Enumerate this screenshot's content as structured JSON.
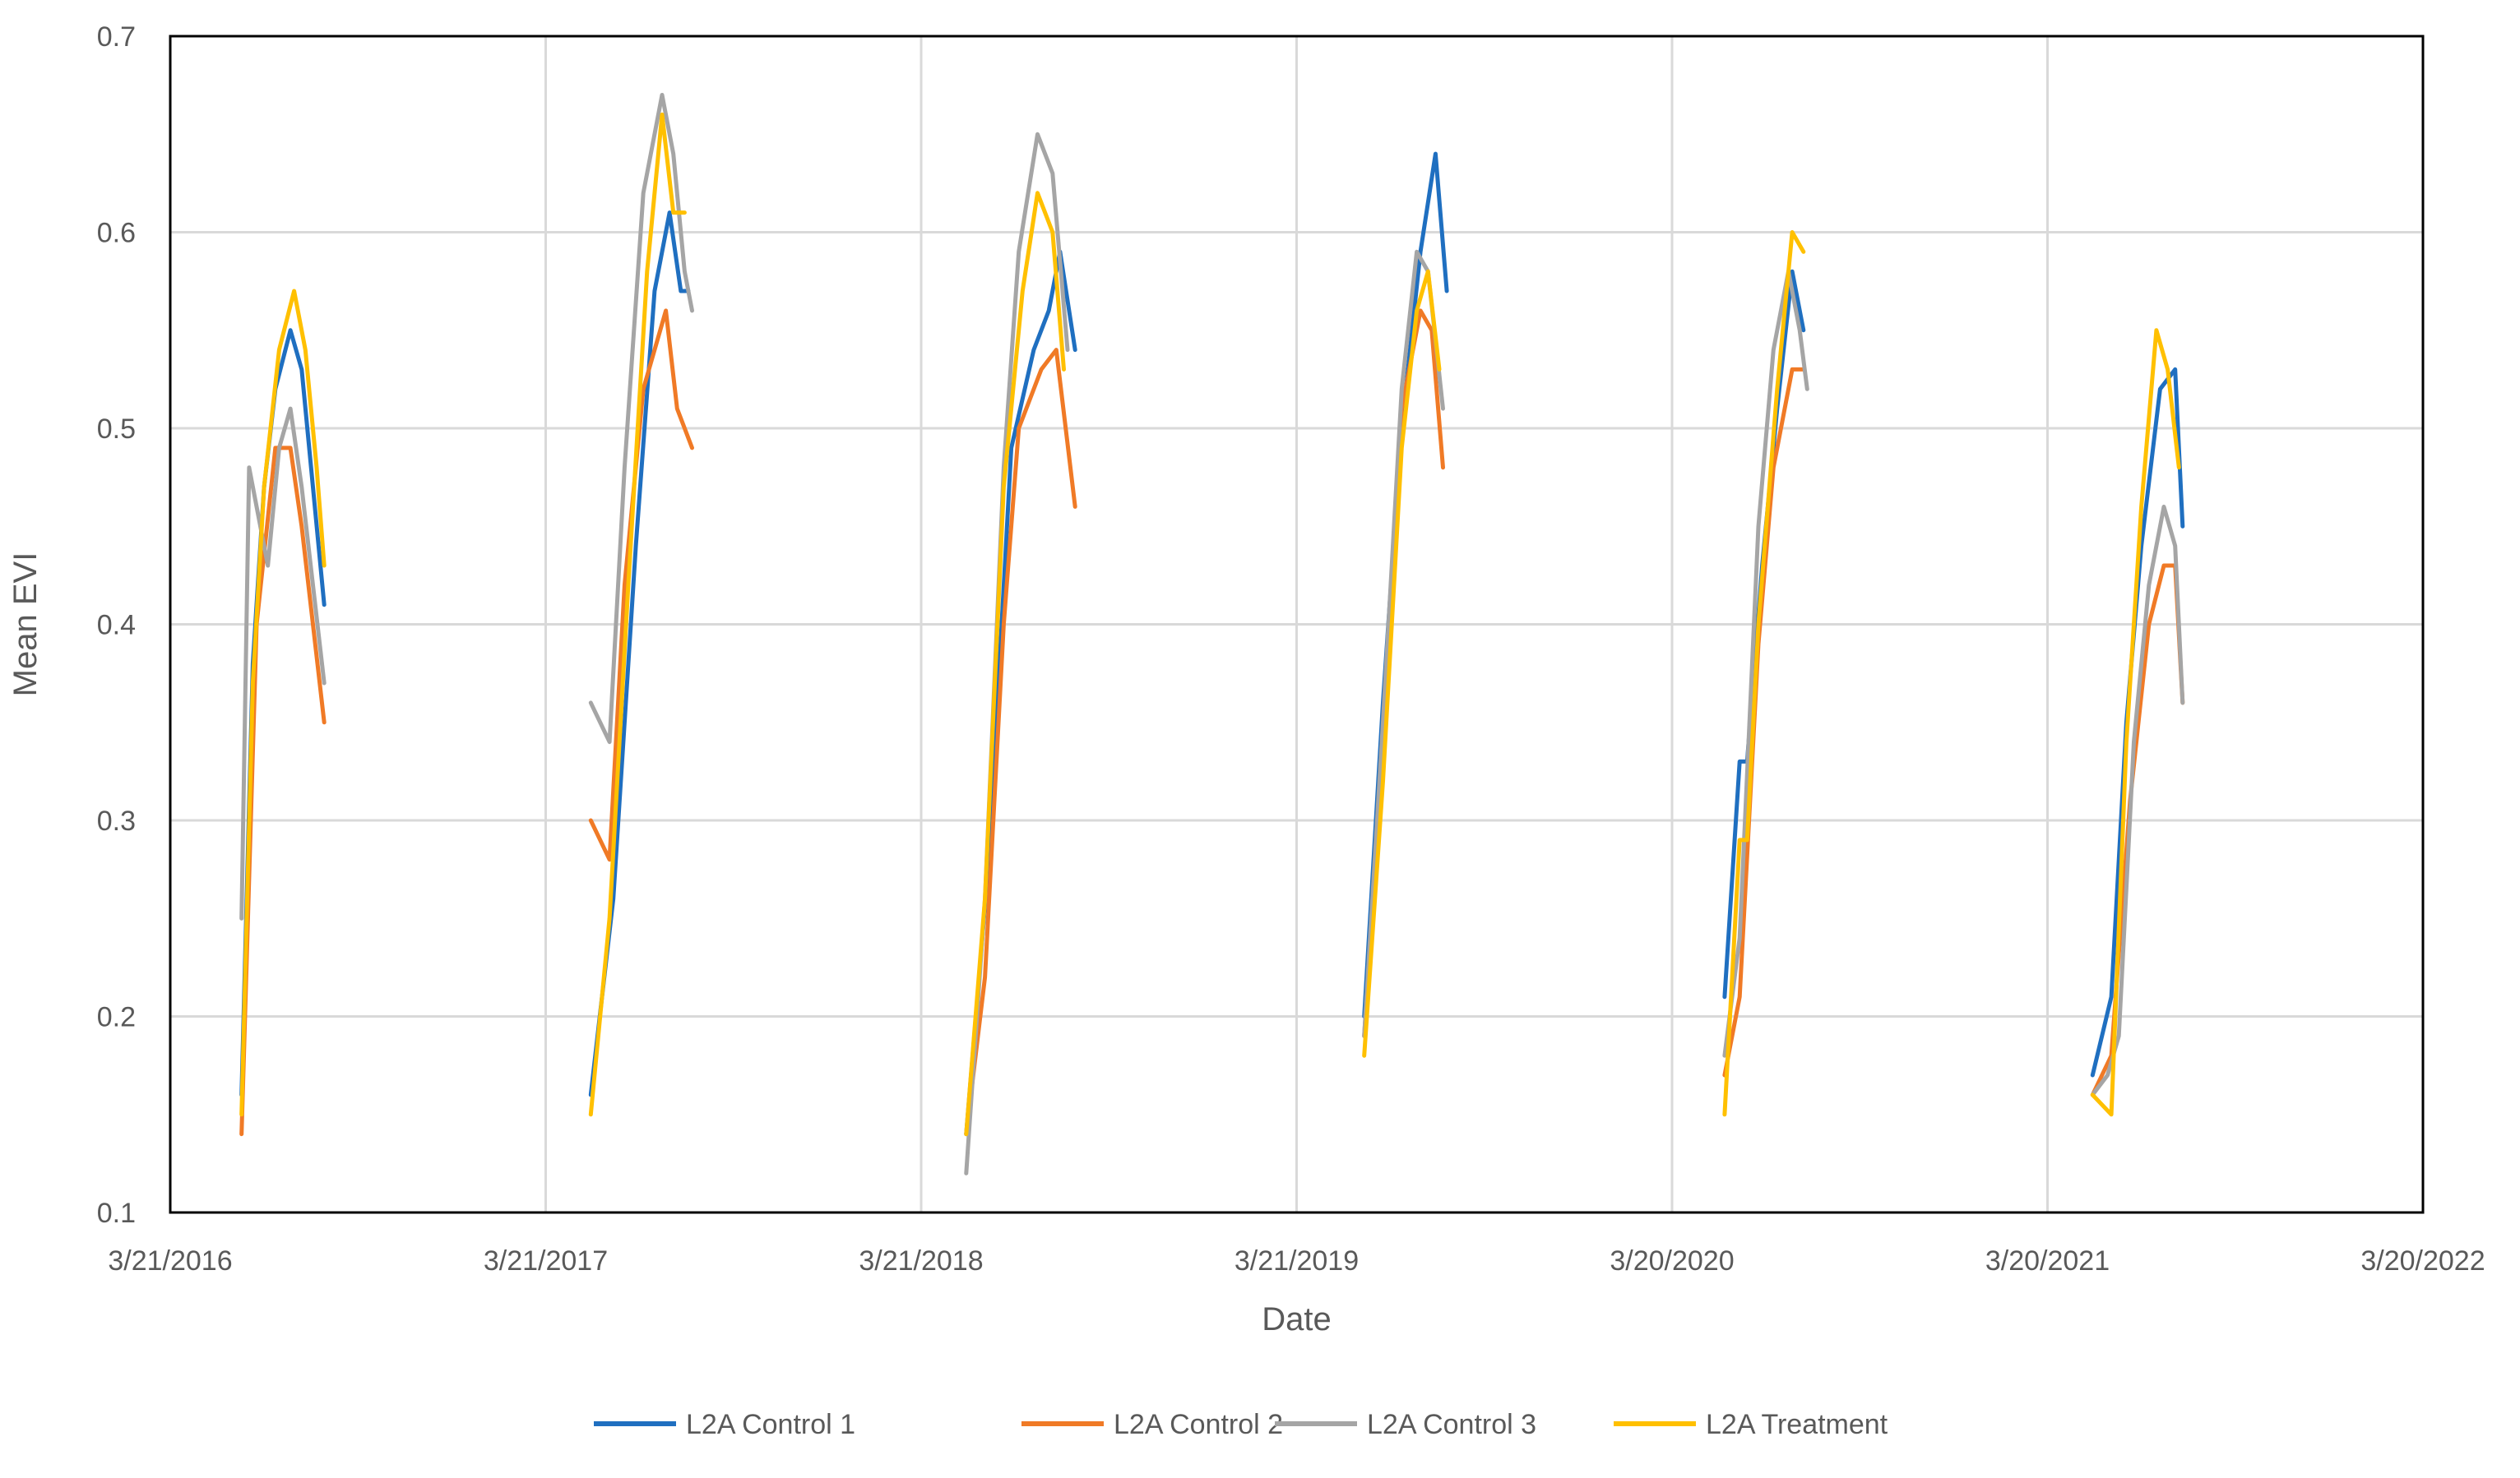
{
  "chart_data": {
    "type": "line",
    "title": "",
    "xlabel": "Date",
    "ylabel": "Mean EVI",
    "ylim": [
      0.1,
      0.7
    ],
    "yticks": [
      "0.1",
      "0.2",
      "0.3",
      "0.4",
      "0.5",
      "0.6",
      "0.7"
    ],
    "xlim": [
      0,
      6
    ],
    "xticks": [
      "3/21/2016",
      "3/21/2017",
      "3/21/2018",
      "3/21/2019",
      "3/20/2020",
      "3/20/2021",
      "3/20/2022"
    ],
    "grid": true,
    "legend_position": "bottom",
    "x_unit": "years since 3/21/2016",
    "series": [
      {
        "name": "L2A Control 1",
        "color": "#1f6fc0",
        "segments": [
          [
            [
              0.19,
              0.16
            ],
            [
              0.22,
              0.38
            ],
            [
              0.25,
              0.47
            ],
            [
              0.28,
              0.52
            ],
            [
              0.32,
              0.55
            ],
            [
              0.35,
              0.53
            ],
            [
              0.38,
              0.47
            ],
            [
              0.41,
              0.41
            ]
          ],
          [
            [
              1.12,
              0.16
            ],
            [
              1.18,
              0.26
            ],
            [
              1.24,
              0.44
            ],
            [
              1.29,
              0.57
            ],
            [
              1.33,
              0.61
            ],
            [
              1.36,
              0.57
            ],
            [
              1.38,
              0.57
            ]
          ],
          [
            [
              2.12,
              0.14
            ],
            [
              2.18,
              0.28
            ],
            [
              2.24,
              0.49
            ],
            [
              2.3,
              0.54
            ],
            [
              2.34,
              0.56
            ],
            [
              2.37,
              0.59
            ],
            [
              2.41,
              0.54
            ]
          ],
          [
            [
              3.18,
              0.2
            ],
            [
              3.23,
              0.36
            ],
            [
              3.28,
              0.5
            ],
            [
              3.33,
              0.59
            ],
            [
              3.37,
              0.64
            ],
            [
              3.4,
              0.57
            ]
          ],
          [
            [
              4.14,
              0.21
            ],
            [
              4.18,
              0.33
            ],
            [
              4.2,
              0.33
            ],
            [
              4.24,
              0.43
            ],
            [
              4.28,
              0.51
            ],
            [
              4.32,
              0.58
            ],
            [
              4.35,
              0.55
            ]
          ],
          [
            [
              5.12,
              0.17
            ],
            [
              5.17,
              0.21
            ],
            [
              5.21,
              0.35
            ],
            [
              5.25,
              0.44
            ],
            [
              5.3,
              0.52
            ],
            [
              5.34,
              0.53
            ],
            [
              5.36,
              0.45
            ]
          ]
        ]
      },
      {
        "name": "L2A Control 2",
        "color": "#f07a26",
        "segments": [
          [
            [
              0.19,
              0.14
            ],
            [
              0.23,
              0.4
            ],
            [
              0.28,
              0.49
            ],
            [
              0.32,
              0.49
            ],
            [
              0.35,
              0.45
            ],
            [
              0.38,
              0.4
            ],
            [
              0.41,
              0.35
            ]
          ],
          [
            [
              1.12,
              0.3
            ],
            [
              1.17,
              0.28
            ],
            [
              1.21,
              0.42
            ],
            [
              1.26,
              0.52
            ],
            [
              1.32,
              0.56
            ],
            [
              1.35,
              0.51
            ],
            [
              1.39,
              0.49
            ]
          ],
          [
            [
              2.12,
              0.14
            ],
            [
              2.17,
              0.22
            ],
            [
              2.22,
              0.4
            ],
            [
              2.26,
              0.5
            ],
            [
              2.32,
              0.53
            ],
            [
              2.36,
              0.54
            ],
            [
              2.41,
              0.46
            ]
          ],
          [
            [
              3.18,
              0.19
            ],
            [
              3.23,
              0.34
            ],
            [
              3.28,
              0.51
            ],
            [
              3.33,
              0.56
            ],
            [
              3.36,
              0.55
            ],
            [
              3.39,
              0.48
            ]
          ],
          [
            [
              4.14,
              0.17
            ],
            [
              4.18,
              0.21
            ],
            [
              4.23,
              0.39
            ],
            [
              4.27,
              0.48
            ],
            [
              4.32,
              0.53
            ],
            [
              4.35,
              0.53
            ]
          ],
          [
            [
              5.12,
              0.16
            ],
            [
              5.17,
              0.18
            ],
            [
              5.22,
              0.31
            ],
            [
              5.27,
              0.4
            ],
            [
              5.31,
              0.43
            ],
            [
              5.34,
              0.43
            ],
            [
              5.36,
              0.36
            ]
          ]
        ]
      },
      {
        "name": "L2A Control 3",
        "color": "#a5a5a5",
        "segments": [
          [
            [
              0.19,
              0.25
            ],
            [
              0.21,
              0.48
            ],
            [
              0.23,
              0.46
            ],
            [
              0.26,
              0.43
            ],
            [
              0.29,
              0.49
            ],
            [
              0.32,
              0.51
            ],
            [
              0.35,
              0.47
            ],
            [
              0.38,
              0.42
            ],
            [
              0.41,
              0.37
            ]
          ],
          [
            [
              1.12,
              0.36
            ],
            [
              1.17,
              0.34
            ],
            [
              1.21,
              0.48
            ],
            [
              1.26,
              0.62
            ],
            [
              1.31,
              0.67
            ],
            [
              1.34,
              0.64
            ],
            [
              1.37,
              0.58
            ],
            [
              1.39,
              0.56
            ]
          ],
          [
            [
              2.12,
              0.12
            ],
            [
              2.17,
              0.26
            ],
            [
              2.22,
              0.48
            ],
            [
              2.26,
              0.59
            ],
            [
              2.31,
              0.65
            ],
            [
              2.35,
              0.63
            ],
            [
              2.39,
              0.54
            ]
          ],
          [
            [
              3.18,
              0.19
            ],
            [
              3.23,
              0.35
            ],
            [
              3.28,
              0.52
            ],
            [
              3.32,
              0.59
            ],
            [
              3.35,
              0.58
            ],
            [
              3.39,
              0.51
            ]
          ],
          [
            [
              4.14,
              0.18
            ],
            [
              4.18,
              0.24
            ],
            [
              4.23,
              0.45
            ],
            [
              4.27,
              0.54
            ],
            [
              4.31,
              0.58
            ],
            [
              4.34,
              0.55
            ],
            [
              4.36,
              0.52
            ]
          ],
          [
            [
              5.12,
              0.16
            ],
            [
              5.16,
              0.17
            ],
            [
              5.19,
              0.19
            ],
            [
              5.23,
              0.34
            ],
            [
              5.27,
              0.42
            ],
            [
              5.31,
              0.46
            ],
            [
              5.34,
              0.44
            ],
            [
              5.36,
              0.36
            ]
          ]
        ]
      },
      {
        "name": "L2A Treatment",
        "color": "#ffc000",
        "segments": [
          [
            [
              0.19,
              0.15
            ],
            [
              0.22,
              0.37
            ],
            [
              0.25,
              0.47
            ],
            [
              0.29,
              0.54
            ],
            [
              0.33,
              0.57
            ],
            [
              0.36,
              0.54
            ],
            [
              0.39,
              0.48
            ],
            [
              0.41,
              0.43
            ]
          ],
          [
            [
              1.12,
              0.15
            ],
            [
              1.17,
              0.25
            ],
            [
              1.22,
              0.42
            ],
            [
              1.27,
              0.58
            ],
            [
              1.31,
              0.66
            ],
            [
              1.34,
              0.61
            ],
            [
              1.37,
              0.61
            ]
          ],
          [
            [
              2.12,
              0.14
            ],
            [
              2.17,
              0.26
            ],
            [
              2.22,
              0.47
            ],
            [
              2.27,
              0.57
            ],
            [
              2.31,
              0.62
            ],
            [
              2.35,
              0.6
            ],
            [
              2.38,
              0.53
            ]
          ],
          [
            [
              3.18,
              0.18
            ],
            [
              3.23,
              0.32
            ],
            [
              3.28,
              0.49
            ],
            [
              3.32,
              0.56
            ],
            [
              3.35,
              0.58
            ],
            [
              3.38,
              0.53
            ]
          ],
          [
            [
              4.14,
              0.15
            ],
            [
              4.18,
              0.29
            ],
            [
              4.2,
              0.29
            ],
            [
              4.23,
              0.4
            ],
            [
              4.28,
              0.52
            ],
            [
              4.32,
              0.6
            ],
            [
              4.35,
              0.59
            ]
          ],
          [
            [
              5.12,
              0.16
            ],
            [
              5.17,
              0.15
            ],
            [
              5.21,
              0.34
            ],
            [
              5.25,
              0.46
            ],
            [
              5.29,
              0.55
            ],
            [
              5.32,
              0.53
            ],
            [
              5.35,
              0.48
            ]
          ]
        ]
      }
    ]
  }
}
